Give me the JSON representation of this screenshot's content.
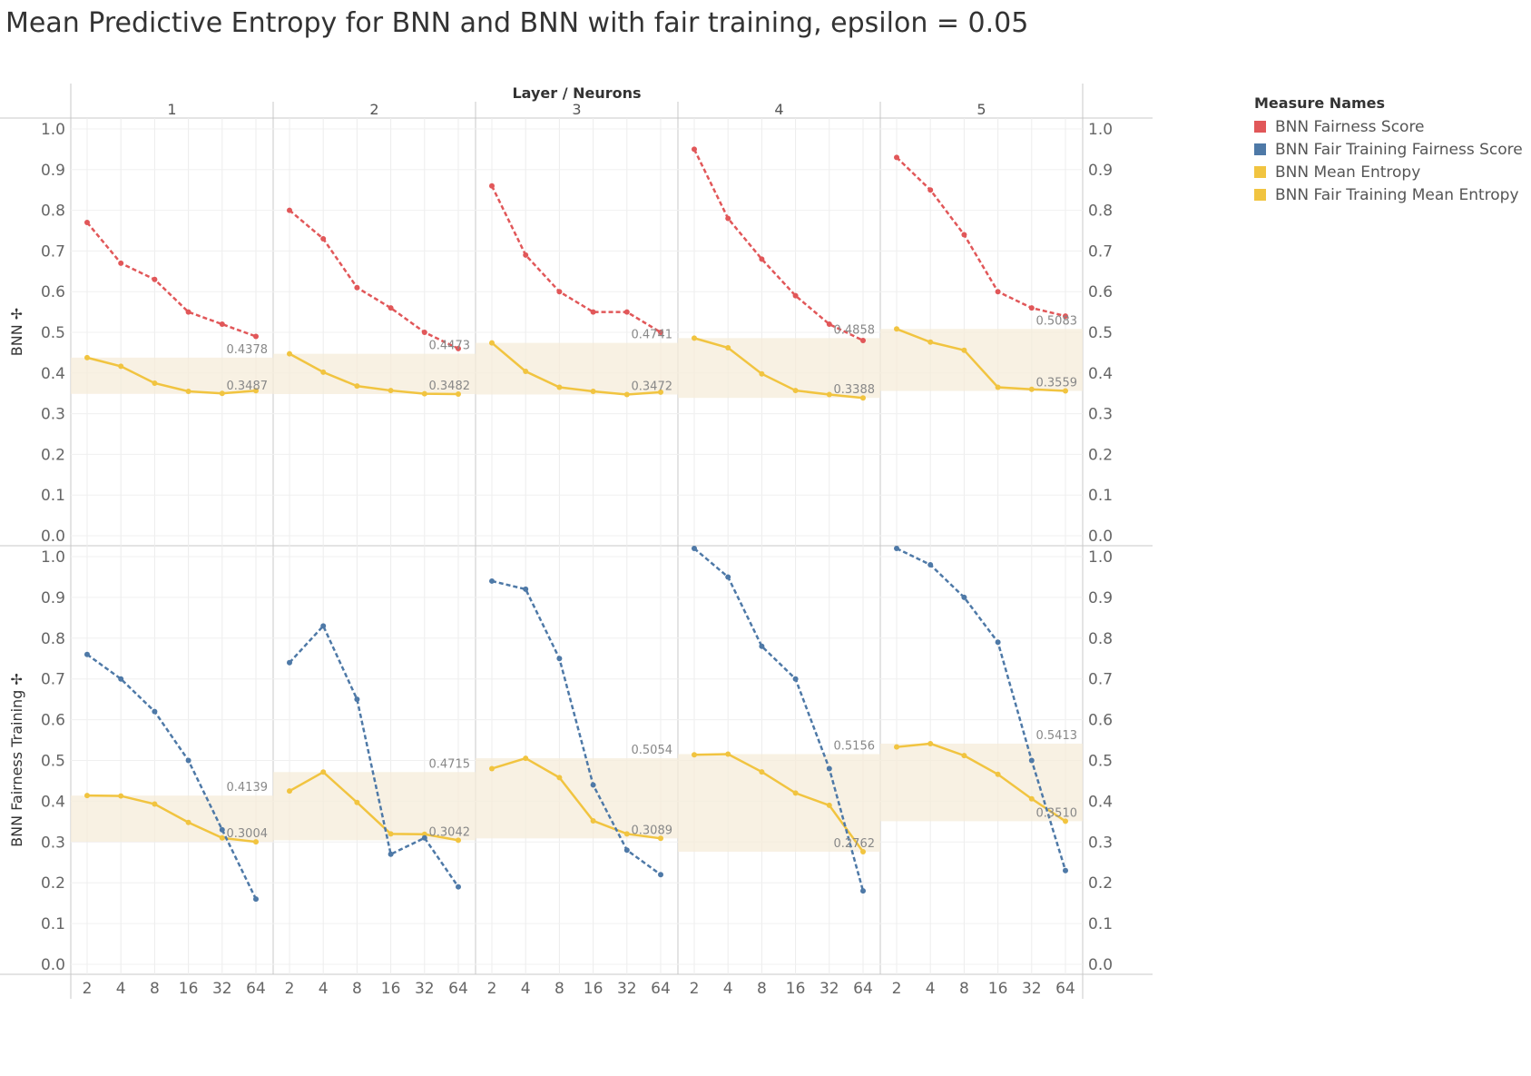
{
  "title": "Mean Predictive Entropy for BNN and BNN with fair training, epsilon = 0.05",
  "chart_data": {
    "type": "line",
    "column_header": "Layer / Neurons",
    "layers": [
      "1",
      "2",
      "3",
      "4",
      "5"
    ],
    "x_categories": [
      "2",
      "4",
      "8",
      "16",
      "32",
      "64"
    ],
    "y_ticks": [
      "0.0",
      "0.1",
      "0.2",
      "0.3",
      "0.4",
      "0.5",
      "0.6",
      "0.7",
      "0.8",
      "0.9",
      "1.0"
    ],
    "ylim": [
      0,
      1
    ],
    "legend": {
      "title": "Measure Names",
      "placement": "top-right",
      "items": [
        {
          "name": "BNN Fairness Score",
          "color": "#e15759"
        },
        {
          "name": "BNN Fair Training Fairness Score",
          "color": "#4e79a7"
        },
        {
          "name": "BNN Mean Entropy",
          "color": "#f1c440"
        },
        {
          "name": "BNN Fair Training Mean Entropy",
          "color": "#f1c440"
        }
      ]
    },
    "rows": [
      {
        "label": "BNN",
        "fairness_series": "BNN Fairness Score",
        "fairness_color": "#e15759",
        "entropy_series": "BNN Mean Entropy",
        "panels": [
          {
            "layer": "1",
            "fairness": [
              0.77,
              0.67,
              0.63,
              0.55,
              0.52,
              0.49
            ],
            "entropy": [
              0.4378,
              0.4165,
              0.375,
              0.355,
              0.35,
              0.3565
            ],
            "band": [
              0.3487,
              0.4378
            ],
            "max_label": "0.4378",
            "min_label": "0.3487"
          },
          {
            "layer": "2",
            "fairness": [
              0.8,
              0.73,
              0.61,
              0.56,
              0.5,
              0.46
            ],
            "entropy": [
              0.4473,
              0.402,
              0.368,
              0.357,
              0.349,
              0.3482
            ],
            "band": [
              0.3482,
              0.4473
            ],
            "max_label": "0.4473",
            "min_label": "0.3482"
          },
          {
            "layer": "3",
            "fairness": [
              0.86,
              0.69,
              0.6,
              0.55,
              0.55,
              0.5
            ],
            "entropy": [
              0.4741,
              0.404,
              0.365,
              0.355,
              0.3472,
              0.353
            ],
            "band": [
              0.3472,
              0.4741
            ],
            "max_label": "0.4741",
            "min_label": "0.3472"
          },
          {
            "layer": "4",
            "fairness": [
              0.95,
              0.78,
              0.68,
              0.59,
              0.52,
              0.48
            ],
            "entropy": [
              0.4858,
              0.462,
              0.398,
              0.357,
              0.347,
              0.3388
            ],
            "band": [
              0.3388,
              0.4858
            ],
            "max_label": "0.4858",
            "min_label": "0.3388"
          },
          {
            "layer": "5",
            "fairness": [
              0.93,
              0.85,
              0.74,
              0.6,
              0.56,
              0.54
            ],
            "entropy": [
              0.5083,
              0.476,
              0.456,
              0.365,
              0.36,
              0.3559
            ],
            "band": [
              0.3559,
              0.5083
            ],
            "max_label": "0.5083",
            "min_label": "0.3559"
          }
        ]
      },
      {
        "label": "BNN Fairness Training",
        "fairness_series": "BNN Fair Training Fairness Score",
        "fairness_color": "#4e79a7",
        "entropy_series": "BNN Fair Training Mean Entropy",
        "panels": [
          {
            "layer": "1",
            "fairness": [
              0.76,
              0.7,
              0.62,
              0.5,
              0.33,
              0.16
            ],
            "entropy": [
              0.4139,
              0.413,
              0.393,
              0.348,
              0.31,
              0.3004
            ],
            "band": [
              0.3004,
              0.4139
            ],
            "max_label": "0.4139",
            "min_label": "0.3004"
          },
          {
            "layer": "2",
            "fairness": [
              0.74,
              0.83,
              0.65,
              0.27,
              0.31,
              0.19
            ],
            "entropy": [
              0.425,
              0.4715,
              0.397,
              0.32,
              0.319,
              0.3042
            ],
            "band": [
              0.3042,
              0.4715
            ],
            "max_label": "0.4715",
            "min_label": "0.3042"
          },
          {
            "layer": "3",
            "fairness": [
              0.94,
              0.92,
              0.75,
              0.44,
              0.28,
              0.22
            ],
            "entropy": [
              0.48,
              0.5054,
              0.458,
              0.352,
              0.32,
              0.3089
            ],
            "band": [
              0.3089,
              0.5054
            ],
            "max_label": "0.5054",
            "min_label": "0.3089"
          },
          {
            "layer": "4",
            "fairness": [
              1.02,
              0.95,
              0.78,
              0.7,
              0.48,
              0.18
            ],
            "entropy": [
              0.514,
              0.5156,
              0.472,
              0.42,
              0.39,
              0.2762
            ],
            "band": [
              0.2762,
              0.5156
            ],
            "max_label": "0.5156",
            "min_label": "0.2762"
          },
          {
            "layer": "5",
            "fairness": [
              1.02,
              0.98,
              0.9,
              0.79,
              0.5,
              0.23
            ],
            "entropy": [
              0.533,
              0.5413,
              0.512,
              0.466,
              0.406,
              0.351
            ],
            "band": [
              0.351,
              0.5413
            ],
            "max_label": "0.5413",
            "min_label": "0.3510"
          }
        ]
      }
    ]
  }
}
